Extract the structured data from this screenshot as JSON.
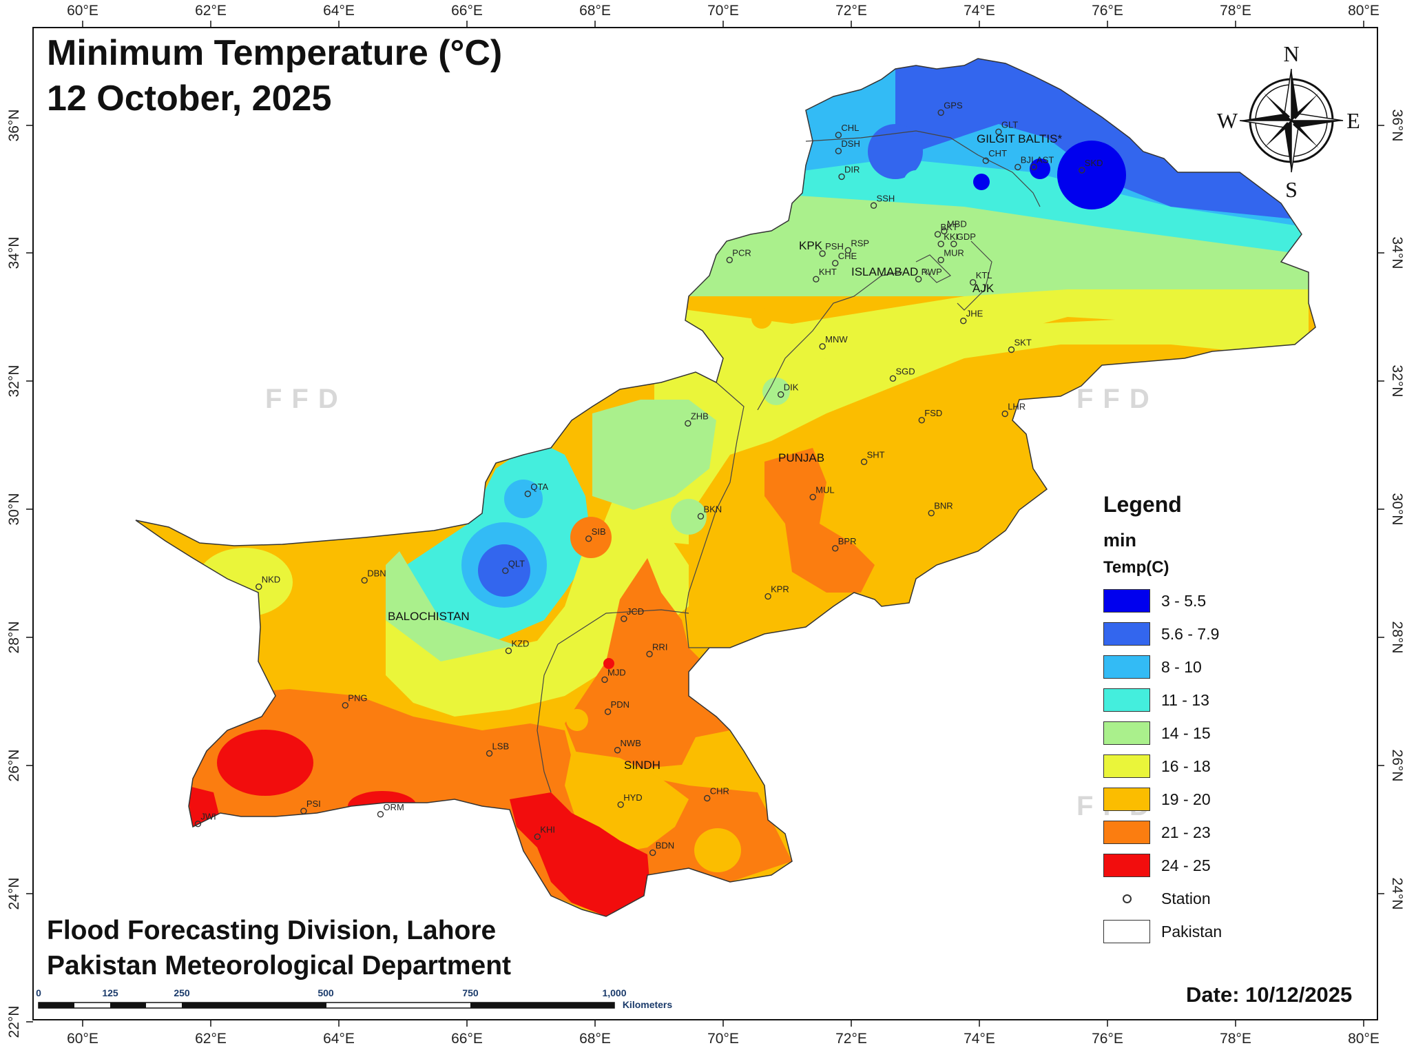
{
  "title": {
    "line1": "Minimum Temperature (°C)",
    "line2": "12 October, 2025"
  },
  "credits": {
    "line1": "Flood Forecasting Division, Lahore",
    "line2": "Pakistan Meteorological Department"
  },
  "date": "Date: 10/12/2025",
  "axes": {
    "lon_labels": [
      "60°E",
      "62°E",
      "64°E",
      "66°E",
      "68°E",
      "70°E",
      "72°E",
      "74°E",
      "76°E",
      "78°E",
      "80°E"
    ],
    "lat_labels": [
      "36°N",
      "34°N",
      "32°N",
      "30°N",
      "28°N",
      "26°N",
      "24°N",
      "22°N"
    ]
  },
  "compass": {
    "n": "N",
    "s": "S",
    "e": "E",
    "w": "W"
  },
  "watermark": "FFD",
  "scale_bar": {
    "labels": [
      "0",
      "125",
      "250",
      "500",
      "750",
      "1,000"
    ],
    "unit": "Kilometers"
  },
  "legend": {
    "title": "Legend",
    "layer": "min",
    "field": "Temp(C)",
    "classes": [
      {
        "label": "3 - 5.5",
        "color": "#0000ee"
      },
      {
        "label": "5.6 - 7.9",
        "color": "#3366ee"
      },
      {
        "label": "8 - 10",
        "color": "#33bbf5"
      },
      {
        "label": "11 - 13",
        "color": "#44eedd"
      },
      {
        "label": "14 - 15",
        "color": "#aaf08c"
      },
      {
        "label": "16 - 18",
        "color": "#eaf53a"
      },
      {
        "label": "19 - 20",
        "color": "#fbbd00"
      },
      {
        "label": "21 - 23",
        "color": "#fb7d10"
      },
      {
        "label": "24 - 25",
        "color": "#f20d0d"
      }
    ],
    "station_label": "Station",
    "boundary_label": "Pakistan"
  },
  "regions": [
    "GILGIT BALTIS*",
    "KPK",
    "ISLAMABAD",
    "AJK",
    "PUNJAB",
    "BALOCHISTAN",
    "SINDH"
  ],
  "stations": [
    {
      "code": "GPS",
      "lon": 73.4,
      "lat": 36.2
    },
    {
      "code": "GLT",
      "lon": 74.3,
      "lat": 35.9
    },
    {
      "code": "CHL",
      "lon": 71.8,
      "lat": 35.85
    },
    {
      "code": "DSH",
      "lon": 71.8,
      "lat": 35.6
    },
    {
      "code": "DIR",
      "lon": 71.85,
      "lat": 35.2
    },
    {
      "code": "CHT",
      "lon": 74.1,
      "lat": 35.45
    },
    {
      "code": "BJI",
      "lon": 74.6,
      "lat": 35.35
    },
    {
      "code": "AST",
      "lon": 74.85,
      "lat": 35.35
    },
    {
      "code": "SKD",
      "lon": 75.6,
      "lat": 35.3
    },
    {
      "code": "SSH",
      "lon": 72.35,
      "lat": 34.75
    },
    {
      "code": "BKT",
      "lon": 73.35,
      "lat": 34.3
    },
    {
      "code": "MBD",
      "lon": 73.45,
      "lat": 34.35
    },
    {
      "code": "KKI",
      "lon": 73.4,
      "lat": 34.15
    },
    {
      "code": "GDP",
      "lon": 73.6,
      "lat": 34.15
    },
    {
      "code": "MUR",
      "lon": 73.4,
      "lat": 33.9
    },
    {
      "code": "PSH",
      "lon": 71.55,
      "lat": 34.0
    },
    {
      "code": "RSP",
      "lon": 71.95,
      "lat": 34.05
    },
    {
      "code": "CHE",
      "lon": 71.75,
      "lat": 33.85
    },
    {
      "code": "PCR",
      "lon": 70.1,
      "lat": 33.9
    },
    {
      "code": "KHT",
      "lon": 71.45,
      "lat": 33.6
    },
    {
      "code": "RWP",
      "lon": 73.05,
      "lat": 33.6
    },
    {
      "code": "KTL",
      "lon": 73.9,
      "lat": 33.55
    },
    {
      "code": "JHE",
      "lon": 73.75,
      "lat": 32.95
    },
    {
      "code": "SKT",
      "lon": 74.5,
      "lat": 32.5
    },
    {
      "code": "MNW",
      "lon": 71.55,
      "lat": 32.55
    },
    {
      "code": "SGD",
      "lon": 72.65,
      "lat": 32.05
    },
    {
      "code": "DIK",
      "lon": 70.9,
      "lat": 31.8
    },
    {
      "code": "FSD",
      "lon": 73.1,
      "lat": 31.4
    },
    {
      "code": "LHR",
      "lon": 74.4,
      "lat": 31.5
    },
    {
      "code": "ZHB",
      "lon": 69.45,
      "lat": 31.35
    },
    {
      "code": "SHT",
      "lon": 72.2,
      "lat": 30.75
    },
    {
      "code": "MUL",
      "lon": 71.4,
      "lat": 30.2
    },
    {
      "code": "QTA",
      "lon": 66.95,
      "lat": 30.25
    },
    {
      "code": "BNR",
      "lon": 73.25,
      "lat": 29.95
    },
    {
      "code": "BKN",
      "lon": 69.65,
      "lat": 29.9
    },
    {
      "code": "SIB",
      "lon": 67.9,
      "lat": 29.55
    },
    {
      "code": "BPR",
      "lon": 71.75,
      "lat": 29.4
    },
    {
      "code": "QLT",
      "lon": 66.6,
      "lat": 29.05
    },
    {
      "code": "DBN",
      "lon": 64.4,
      "lat": 28.9
    },
    {
      "code": "NKD",
      "lon": 62.75,
      "lat": 28.8
    },
    {
      "code": "KPR",
      "lon": 70.7,
      "lat": 28.65
    },
    {
      "code": "JCD",
      "lon": 68.45,
      "lat": 28.3
    },
    {
      "code": "KZD",
      "lon": 66.65,
      "lat": 27.8
    },
    {
      "code": "RRI",
      "lon": 68.85,
      "lat": 27.75
    },
    {
      "code": "MJD",
      "lon": 68.15,
      "lat": 27.35
    },
    {
      "code": "PNG",
      "lon": 64.1,
      "lat": 26.95
    },
    {
      "code": "PDN",
      "lon": 68.2,
      "lat": 26.85
    },
    {
      "code": "NWB",
      "lon": 68.35,
      "lat": 26.25
    },
    {
      "code": "LSB",
      "lon": 66.35,
      "lat": 26.2
    },
    {
      "code": "CHR",
      "lon": 69.75,
      "lat": 25.5
    },
    {
      "code": "PSI",
      "lon": 63.45,
      "lat": 25.3
    },
    {
      "code": "HYD",
      "lon": 68.4,
      "lat": 25.4
    },
    {
      "code": "ORM",
      "lon": 64.65,
      "lat": 25.25
    },
    {
      "code": "JWI",
      "lon": 61.8,
      "lat": 25.1
    },
    {
      "code": "KHI",
      "lon": 67.1,
      "lat": 24.9
    },
    {
      "code": "BDN",
      "lon": 68.9,
      "lat": 24.65
    }
  ]
}
